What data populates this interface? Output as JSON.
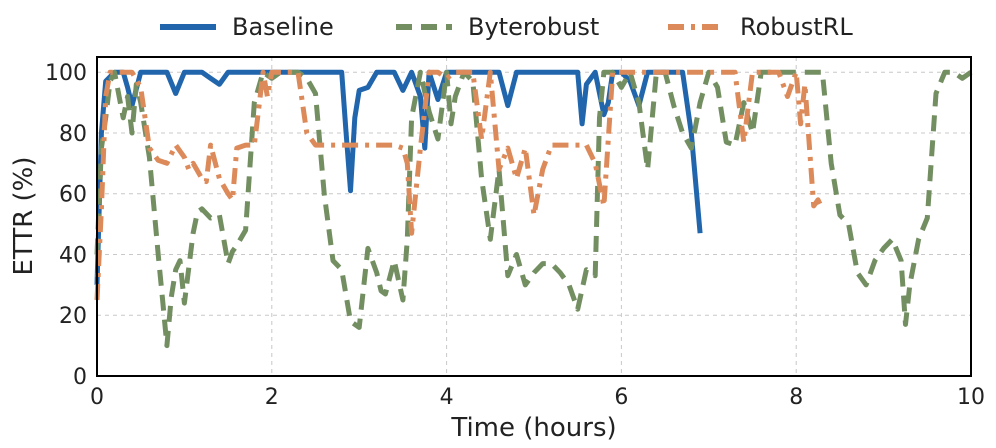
{
  "chart_data": {
    "type": "line",
    "title": "",
    "xlabel": "Time (hours)",
    "ylabel": "ETTR (%)",
    "xlim": [
      0,
      10
    ],
    "ylim": [
      0,
      105
    ],
    "xticks": [
      0,
      2,
      4,
      6,
      8,
      10
    ],
    "yticks": [
      0,
      20,
      40,
      60,
      80,
      100
    ],
    "grid": true,
    "legend_position": "top (outside, above plot)",
    "series": [
      {
        "name": "Baseline",
        "color": "#2166ac",
        "dash": "solid",
        "x": [
          0,
          0.05,
          0.1,
          0.2,
          0.3,
          0.35,
          0.4,
          0.5,
          0.6,
          0.8,
          0.9,
          1.0,
          1.1,
          1.2,
          1.3,
          1.4,
          1.5,
          1.6,
          1.7,
          1.8,
          1.9,
          2.0,
          2.5,
          2.8,
          2.85,
          2.9,
          2.95,
          3.0,
          3.1,
          3.2,
          3.3,
          3.4,
          3.5,
          3.6,
          3.7,
          3.75,
          3.8,
          3.9,
          4.0,
          4.1,
          4.2,
          4.3,
          4.4,
          4.5,
          4.6,
          4.7,
          4.8,
          4.9,
          5.0,
          5.2,
          5.4,
          5.5,
          5.55,
          5.6,
          5.7,
          5.8,
          5.85,
          5.9,
          6.0,
          6.1,
          6.2,
          6.3,
          6.35,
          6.4,
          6.5,
          6.6,
          6.7,
          6.8,
          6.9
        ],
        "y": [
          30,
          80,
          97,
          100,
          100,
          95,
          89,
          100,
          100,
          100,
          93,
          100,
          100,
          100,
          98,
          96,
          100,
          100,
          100,
          100,
          100,
          100,
          100,
          100,
          80,
          61,
          85,
          94,
          95,
          100,
          100,
          100,
          94,
          100,
          92,
          75,
          100,
          91,
          100,
          100,
          100,
          100,
          100,
          100,
          100,
          89,
          100,
          100,
          100,
          100,
          100,
          100,
          83,
          96,
          100,
          86,
          90,
          100,
          100,
          97,
          89,
          100,
          100,
          100,
          100,
          100,
          100,
          80,
          47
        ]
      },
      {
        "name": "Byterobust",
        "color": "#738f62",
        "dash": "long-dash",
        "x": [
          0,
          0.05,
          0.1,
          0.15,
          0.2,
          0.3,
          0.35,
          0.4,
          0.45,
          0.5,
          0.6,
          0.7,
          0.75,
          0.8,
          0.85,
          0.9,
          0.95,
          1.0,
          1.1,
          1.15,
          1.2,
          1.3,
          1.4,
          1.5,
          1.55,
          1.6,
          1.7,
          1.8,
          1.9,
          2.0,
          2.1,
          2.2,
          2.3,
          2.4,
          2.5,
          2.6,
          2.7,
          2.8,
          2.9,
          3.0,
          3.1,
          3.2,
          3.25,
          3.3,
          3.4,
          3.5,
          3.55,
          3.6,
          3.7,
          3.8,
          3.9,
          4.0,
          4.05,
          4.1,
          4.2,
          4.3,
          4.4,
          4.5,
          4.6,
          4.7,
          4.8,
          4.9,
          5.0,
          5.1,
          5.2,
          5.3,
          5.4,
          5.5,
          5.6,
          5.7,
          5.75,
          5.8,
          5.9,
          6.0,
          6.1,
          6.2,
          6.3,
          6.4,
          6.5,
          6.6,
          6.7,
          6.8,
          6.9,
          7.0,
          7.1,
          7.2,
          7.3,
          7.4,
          7.5,
          7.6,
          7.7,
          7.8,
          7.9,
          8.0,
          8.1,
          8.2,
          8.3,
          8.4,
          8.5,
          8.6,
          8.7,
          8.8,
          8.9,
          9.0,
          9.1,
          9.2,
          9.25,
          9.3,
          9.4,
          9.5,
          9.6,
          9.7,
          9.8,
          9.9,
          10.0
        ],
        "y": [
          40,
          75,
          85,
          97,
          100,
          85,
          92,
          80,
          96,
          90,
          72,
          40,
          25,
          10,
          26,
          35,
          38,
          24,
          47,
          54,
          55,
          52,
          53,
          37,
          41,
          43,
          48,
          90,
          100,
          98,
          100,
          100,
          100,
          98,
          93,
          60,
          38,
          35,
          18,
          16,
          42,
          34,
          28,
          27,
          38,
          25,
          45,
          85,
          100,
          87,
          78,
          100,
          83,
          92,
          100,
          97,
          65,
          45,
          68,
          33,
          40,
          30,
          34,
          37,
          37,
          34,
          30,
          22,
          35,
          33,
          85,
          100,
          100,
          95,
          100,
          90,
          68,
          100,
          100,
          89,
          80,
          75,
          90,
          100,
          95,
          77,
          76,
          90,
          80,
          100,
          100,
          100,
          100,
          100,
          100,
          100,
          100,
          70,
          53,
          50,
          34,
          30,
          38,
          42,
          45,
          38,
          17,
          30,
          45,
          52,
          93,
          100,
          100,
          98,
          100
        ]
      },
      {
        "name": "RobustRL",
        "color": "#dc8a5a",
        "dash": "dash-dot",
        "x": [
          0,
          0.05,
          0.1,
          0.15,
          0.2,
          0.3,
          0.4,
          0.5,
          0.6,
          0.7,
          0.8,
          0.9,
          1.0,
          1.05,
          1.1,
          1.2,
          1.25,
          1.3,
          1.4,
          1.5,
          1.55,
          1.6,
          1.7,
          1.8,
          1.9,
          1.95,
          2.0,
          2.1,
          2.2,
          2.3,
          2.4,
          2.5,
          2.6,
          2.7,
          2.8,
          2.9,
          3.0,
          3.1,
          3.2,
          3.3,
          3.4,
          3.5,
          3.55,
          3.6,
          3.7,
          3.8,
          3.85,
          3.9,
          4.0,
          4.1,
          4.2,
          4.3,
          4.4,
          4.5,
          4.6,
          4.7,
          4.8,
          4.9,
          5.0,
          5.1,
          5.2,
          5.3,
          5.4,
          5.5,
          5.6,
          5.7,
          5.8,
          5.9,
          6.0,
          6.2,
          6.4,
          6.6,
          6.8,
          7.0,
          7.2,
          7.3,
          7.4,
          7.5,
          7.6,
          7.7,
          7.8,
          7.9,
          8.0,
          8.05,
          8.1,
          8.2,
          8.25,
          8.3
        ],
        "y": [
          25,
          55,
          92,
          100,
          100,
          100,
          100,
          95,
          75,
          71,
          70,
          76,
          72,
          68,
          70,
          65,
          64,
          76,
          65,
          60,
          58,
          75,
          76,
          76,
          100,
          92,
          100,
          100,
          100,
          100,
          80,
          76,
          76,
          76,
          76,
          76,
          76,
          76,
          76,
          76,
          76,
          75,
          70,
          47,
          75,
          100,
          100,
          100,
          98,
          100,
          100,
          100,
          78,
          100,
          68,
          75,
          65,
          75,
          53,
          68,
          76,
          76,
          76,
          76,
          76,
          70,
          56,
          100,
          100,
          100,
          100,
          100,
          100,
          100,
          100,
          100,
          77,
          100,
          100,
          100,
          100,
          92,
          100,
          83,
          96,
          56,
          58,
          55
        ]
      }
    ]
  }
}
